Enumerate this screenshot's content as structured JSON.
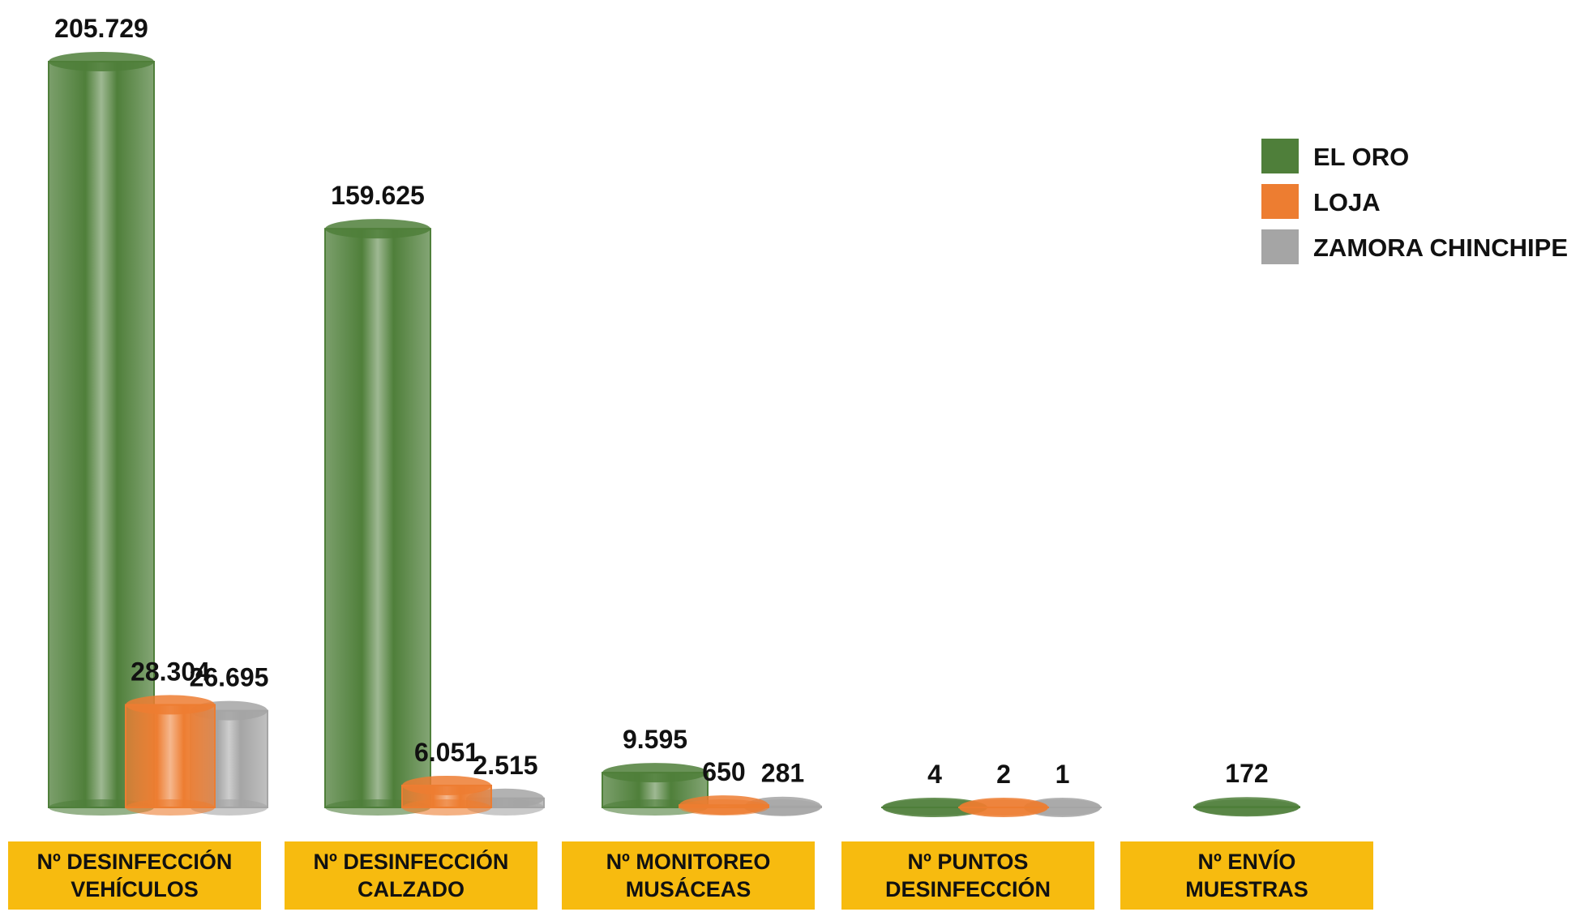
{
  "chart_data": {
    "type": "bar",
    "categories": [
      "Nº DESINFECCIÓN\nVEHÍCULOS",
      "Nº DESINFECCIÓN\nCALZADO",
      "Nº MONITOREO\nMUSÁCEAS",
      "Nº PUNTOS\nDESINFECCIÓN",
      "Nº ENVÍO\nMUESTRAS"
    ],
    "series": [
      {
        "name": "EL ORO",
        "color": "#4f7f3a",
        "values": [
          205729,
          159625,
          9595,
          4,
          172
        ],
        "value_labels": [
          "205.729",
          "159.625",
          "9.595",
          "4",
          "172"
        ]
      },
      {
        "name": "LOJA",
        "color": "#ed7d31",
        "values": [
          28304,
          6051,
          650,
          2,
          null
        ],
        "value_labels": [
          "28.304",
          "6.051",
          "650",
          "2",
          null
        ]
      },
      {
        "name": "ZAMORA CHINCHIPE",
        "color": "#a5a5a5",
        "values": [
          26695,
          2515,
          281,
          1,
          null
        ],
        "value_labels": [
          "26.695",
          "2.515",
          "281",
          "1",
          null
        ]
      }
    ],
    "legend": "right"
  }
}
